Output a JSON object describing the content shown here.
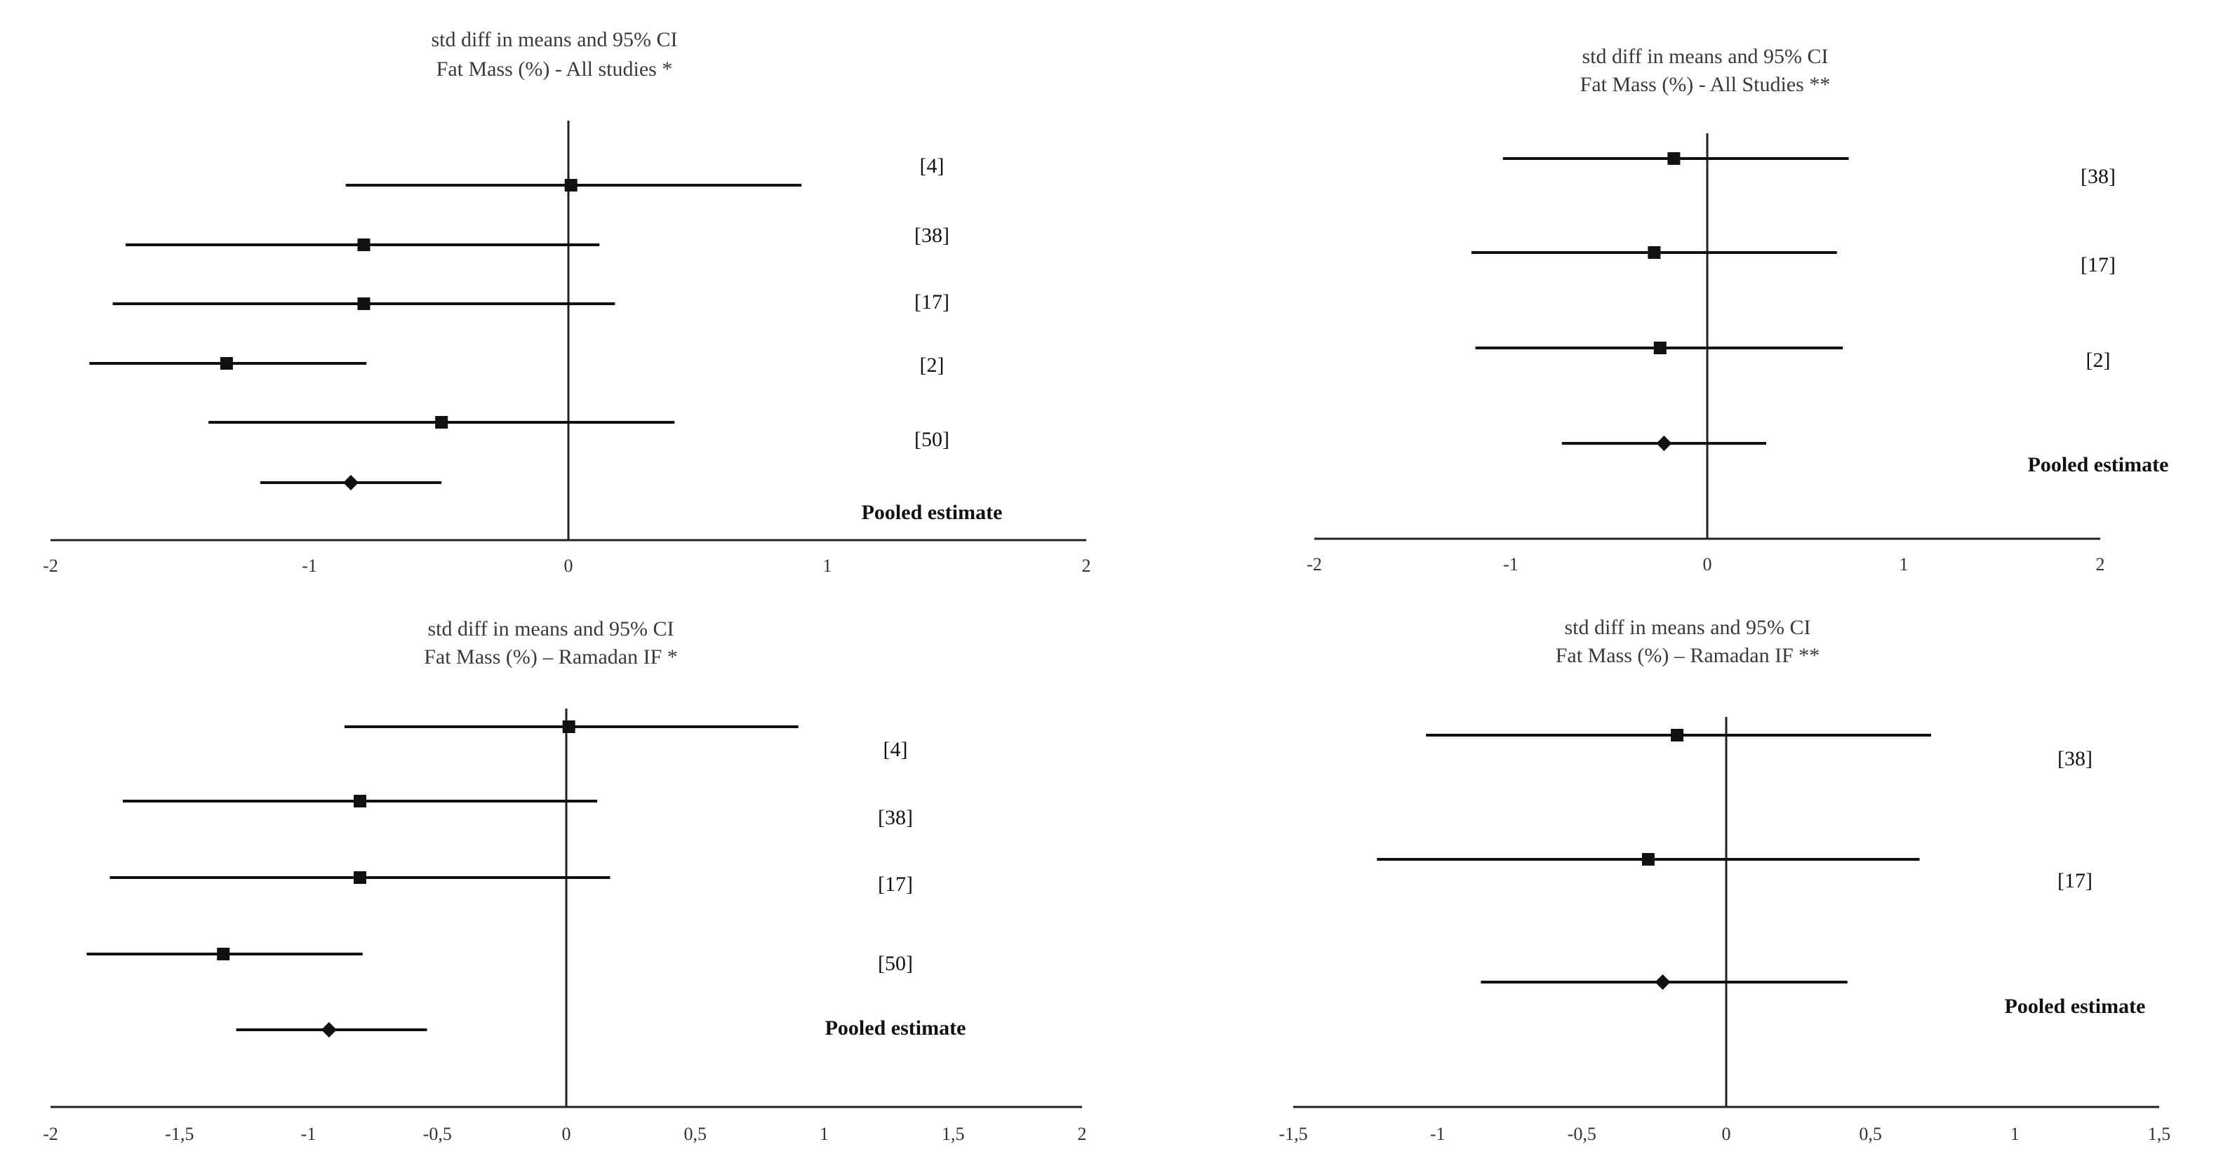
{
  "chart_data": [
    {
      "type": "forest",
      "title": "std diff in means and 95% CI",
      "subtitle": "Fat Mass (%) - All studies *",
      "xlim": [
        -2,
        2
      ],
      "ticks": [
        -2,
        -1,
        0,
        1,
        2
      ],
      "tick_labels": [
        "-2",
        "-1",
        "0",
        "1",
        "2"
      ],
      "rows": [
        {
          "label": "[4]",
          "estimate": 0.01,
          "lower": -0.86,
          "upper": 0.9,
          "marker": "square"
        },
        {
          "label": "[38]",
          "estimate": -0.79,
          "lower": -1.71,
          "upper": 0.12,
          "marker": "square"
        },
        {
          "label": "[17]",
          "estimate": -0.79,
          "lower": -1.76,
          "upper": 0.18,
          "marker": "square"
        },
        {
          "label": "[2]",
          "estimate": -1.32,
          "lower": -1.85,
          "upper": -0.78,
          "marker": "square"
        },
        {
          "label": "[50]",
          "estimate": -0.49,
          "lower": -1.39,
          "upper": 0.41,
          "marker": "square"
        },
        {
          "label": "Pooled estimate",
          "estimate": -0.84,
          "lower": -1.19,
          "upper": -0.49,
          "marker": "diamond"
        }
      ]
    },
    {
      "type": "forest",
      "title": "std diff in means and 95% CI",
      "subtitle": "Fat Mass (%) - All Studies **",
      "xlim": [
        -2,
        2
      ],
      "ticks": [
        -2,
        -1,
        0,
        1,
        2
      ],
      "tick_labels": [
        "-2",
        "-1",
        "0",
        "1",
        "2"
      ],
      "rows": [
        {
          "label": "[38]",
          "estimate": -0.17,
          "lower": -1.04,
          "upper": 0.72,
          "marker": "square"
        },
        {
          "label": "[17]",
          "estimate": -0.27,
          "lower": -1.2,
          "upper": 0.66,
          "marker": "square"
        },
        {
          "label": "[2]",
          "estimate": -0.24,
          "lower": -1.18,
          "upper": 0.69,
          "marker": "square"
        },
        {
          "label": "Pooled estimate",
          "estimate": -0.22,
          "lower": -0.74,
          "upper": 0.3,
          "marker": "diamond"
        }
      ]
    },
    {
      "type": "forest",
      "title": "std diff in means and 95% CI",
      "subtitle": "Fat Mass (%) – Ramadan IF *",
      "xlim": [
        -2,
        2
      ],
      "ticks": [
        -2,
        -1.5,
        -1,
        -0.5,
        0,
        0.5,
        1,
        1.5,
        2
      ],
      "tick_labels": [
        "-2",
        "-1,5",
        "-1",
        "-0,5",
        "0",
        "0,5",
        "1",
        "1,5",
        "2"
      ],
      "rows": [
        {
          "label": "[4]",
          "estimate": 0.01,
          "lower": -0.86,
          "upper": 0.9,
          "marker": "square"
        },
        {
          "label": "[38]",
          "estimate": -0.8,
          "lower": -1.72,
          "upper": 0.12,
          "marker": "square"
        },
        {
          "label": "[17]",
          "estimate": -0.8,
          "lower": -1.77,
          "upper": 0.17,
          "marker": "square"
        },
        {
          "label": "[50]",
          "estimate": -1.33,
          "lower": -1.86,
          "upper": -0.79,
          "marker": "square"
        },
        {
          "label": "Pooled estimate",
          "estimate": -0.92,
          "lower": -1.28,
          "upper": -0.54,
          "marker": "diamond"
        }
      ]
    },
    {
      "type": "forest",
      "title": "std diff in means and 95% CI",
      "subtitle": "Fat Mass (%) – Ramadan IF **",
      "xlim": [
        -1.5,
        1.5
      ],
      "ticks": [
        -1.5,
        -1,
        -0.5,
        0,
        0.5,
        1,
        1.5
      ],
      "tick_labels": [
        "-1,5",
        "-1",
        "-0,5",
        "0",
        "0,5",
        "1",
        "1,5"
      ],
      "rows": [
        {
          "label": "[38]",
          "estimate": -0.17,
          "lower": -1.04,
          "upper": 0.71,
          "marker": "square"
        },
        {
          "label": "[17]",
          "estimate": -0.27,
          "lower": -1.21,
          "upper": 0.67,
          "marker": "square"
        },
        {
          "label": "Pooled estimate",
          "estimate": -0.22,
          "lower": -0.85,
          "upper": 0.42,
          "marker": "diamond"
        }
      ]
    }
  ]
}
